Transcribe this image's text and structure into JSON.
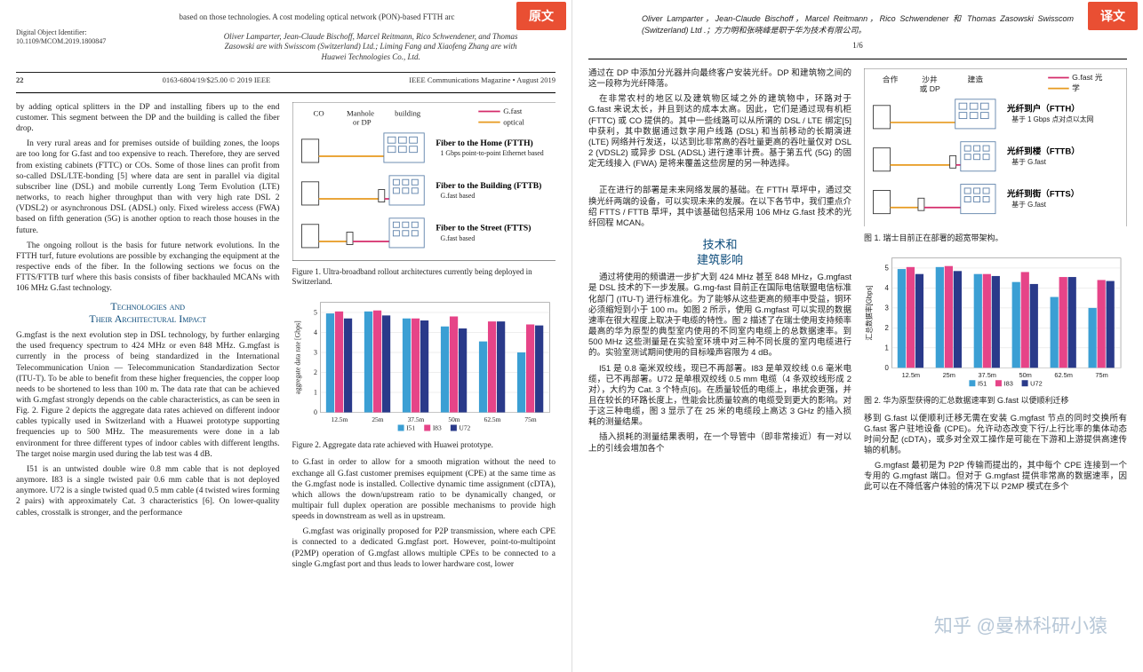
{
  "badges": {
    "left": "原文",
    "right": "译文"
  },
  "watermark": "知乎 @曼林科研小猿",
  "left": {
    "header_line": "based on those technologies. A cost modeling    optical network (PON)-based FTTH arc",
    "doi_label": "Digital Object Identifier:",
    "doi_value": "10.1109/MCOM.2019.1800847",
    "authors": "Oliver Lamparter, Jean-Claude Bischoff, Marcel Reitmann, Rico Schwendener, and Thomas Zasowski are with Swisscom (Switzerland) Ltd.; Liming Fang and Xiaofeng Zhang are with Huawei Technologies Co., Ltd.",
    "footer_pg": "22",
    "footer_center": "0163-6804/19/$25.00 © 2019 IEEE",
    "footer_right": "IEEE Communications Magazine • August 2019",
    "body": {
      "p1": "by adding optical splitters in the DP and installing fibers up to the end customer. This segment between the DP and the building is called the fiber drop.",
      "p2": "In very rural areas and for premises outside of building zones, the loops are too long for G.fast and too expensive to reach. Therefore, they are served from existing cabinets (FTTC) or COs. Some of those lines can profit from so-called DSL/LTE-bonding [5] where data are sent in parallel via digital subscriber line (DSL) and mobile currently Long Term Evolution (LTE) networks, to reach higher throughput than with very high rate DSL 2 (VDSL2) or asynchronous DSL (ADSL) only. Fixed wireless access (FWA) based on fifth generation (5G) is another option to reach those houses in the future.",
      "p3": "The ongoing rollout is the basis for future network evolutions. In the FTTH turf, future evolutions are possible by exchanging the equipment at the respective ends of the fiber. In the following sections we focus on the FTTS/FTTB turf where this basis consists of fiber backhauled MCANs with 106 MHz G.fast technology.",
      "sec_head1": "Technologies and",
      "sec_head2": "Their Architectural Impact",
      "p4": "G.mgfast is the next evolution step in DSL technology, by further enlarging the used frequency spectrum to 424 MHz or even 848 MHz. G.mgfast is currently in the process of being standardized in the International Telecommunication Union — Telecommunication Standardization Sector (ITU-T). To be able to benefit from these higher frequencies, the copper loop needs to be shortened to less than 100 m. The data rate that can be achieved with G.mgfast strongly depends on the cable characteristics, as can be seen in Fig. 2. Figure 2 depicts the aggregate data rates achieved on different indoor cables typically used in Switzerland with a Huawei prototype supporting frequencies up to 500 MHz. The measurements were done in a lab environment for three different types of indoor cables with different lengths. The target noise margin used during the lab test was 4 dB.",
      "p5": "I51 is an untwisted double wire 0.8 mm cable that is not deployed anymore. I83 is a single twisted pair 0.6 mm cable that is not deployed anymore. U72 is a single twisted quad 0.5 mm cable (4 twisted wires forming 2 pairs) with approximately Cat. 3 characteristics [6]. On lower-quality cables, crosstalk is stronger, and the performance",
      "p6": "to G.fast in order to allow for a smooth migration without the need to exchange all G.fast customer premises equipment (CPE) at the same time as the G.mgfast node is installed. Collective dynamic time assignment (cDTA), which allows the down/upstream ratio to be dynamically changed, or multipair full duplex operation are possible mechanisms to provide high speeds in downstream as well as in upstream.",
      "p7": "G.mgfast was originally proposed for P2P transmission, where each CPE is connected to a dedicated G.mgfast port. However, point-to-multipoint (P2MP) operation of G.mgfast allows multiple CPEs to be connected to a single G.mgfast port and thus leads to lower hardware cost, lower"
    },
    "fig1": {
      "caption": "Figure 1. Ultra-broadband rollout architectures currently being deployed in Switzerland.",
      "labels": {
        "co": "CO",
        "manhole": "Manhole or DP",
        "building": "building"
      },
      "legend": [
        "G.fast",
        "optical"
      ],
      "legend_colors": [
        "#d42b6a",
        "#e79a1f"
      ],
      "rows": [
        {
          "title": "Fiber to the Home (FTTH)",
          "sub": "1 Gbps point-to-point Ethernet based"
        },
        {
          "title": "Fiber to the Building (FTTB)",
          "sub": "G.fast based"
        },
        {
          "title": "Fiber to the Street (FTTS)",
          "sub": "G.fast based"
        }
      ],
      "colors": {
        "optical": "#e79a1f",
        "gfast": "#d42b6a",
        "building": "#5b7fa8"
      }
    },
    "fig2": {
      "caption": "Figure 2. Aggregate data rate achieved with Huawei prototype.",
      "type": "bar",
      "ylabel": "aggregate data rate [Gbps]",
      "ylim": [
        0,
        5.5
      ],
      "ytick": [
        0,
        1,
        2,
        3,
        4,
        5
      ],
      "categories": [
        "12.5m",
        "25m",
        "37.5m",
        "50m",
        "62.5m",
        "75m"
      ],
      "series": [
        {
          "name": "I51",
          "color": "#3b9fd4",
          "values": [
            4.95,
            5.05,
            4.7,
            4.3,
            3.55,
            3.0
          ]
        },
        {
          "name": "I83",
          "color": "#e64488",
          "values": [
            5.05,
            5.1,
            4.7,
            4.8,
            4.55,
            4.4
          ]
        },
        {
          "name": "U72",
          "color": "#2a3a8a",
          "values": [
            4.7,
            4.85,
            4.6,
            4.2,
            4.55,
            4.35
          ]
        }
      ],
      "bg": "#ffffff",
      "grid": "#d8d8d8",
      "label_fontsize": 9
    }
  },
  "right": {
    "authors": "Oliver Lamparter，Jean-Claude Bischoff，Marcel Reitmann，Rico Schwendener 和 Thomas Zasowski Swisscom (Switzerland) Ltd .；方力明和张晓峰是职于华为技术有限公司。",
    "page_ind": "1/6",
    "body": {
      "p1": "通过在 DP 中添加分光器并向最终客户安装光纤。DP 和建筑物之间的这一段称为光纤降落。",
      "p2": "在非常农村的地区以及建筑物区域之外的建筑物中，环路对于 G.fast 来说太长，并且到达的成本太高。因此，它们是通过现有机柜 (FTTC) 或 CO 提供的。其中一些线路可以从所谓的 DSL / LTE 绑定[5] 中获利，其中数据通过数字用户线路 (DSL) 和当前移动的长期演进 (LTE) 网络并行发送，以达到比非常高的吞吐量更高的吞吐量仅对 DSL 2 (VDSL2) 或异步 DSL (ADSL) 进行速率计费。基于第五代 (5G) 的固定无线接入 (FWA) 是将来覆盖这些房屋的另一种选择。",
      "p3": "正在进行的部署是未来网络发展的基础。在 FTTH 草坪中，通过交换光纤两端的设备，可以实现未来的发展。在以下各节中，我们重点介绍 FTTS / FTTB 草坪，其中该基础包括采用 106 MHz G.fast 技术的光纤回程 MCAN。",
      "sec_head1": "技术和",
      "sec_head2": "建筑影响",
      "p4": "通过将使用的频谱进一步扩大到 424 MHz 甚至 848 MHz，G.mgfast 是 DSL 技术的下一步发展。G.mg-fast 目前正在国际电信联盟电信标准化部门 (ITU-T) 进行标准化。为了能够从这些更高的频率中受益，铜环必须缩短到小于 100 m。如图 2 所示，使用 G.mgfast 可以实现的数据速率在很大程度上取决于电缆的特性。图 2 描述了在瑞士使用支持频率最高的华为原型的典型室内使用的不同室内电缆上的总数据速率。到 500 MHz 这些测量是在实验室环境中对三种不同长度的室内电缆进行的。实验室测试期间使用的目标噪声容限为 4 dB。",
      "p5": "I51 是 0.8 毫米双绞线，现已不再部署。I83 是单双绞线 0.6 毫米电缆，已不再部署。U72 是单根双绞线 0.5 mm 电缆（4 条双绞线形成 2 对），大约为 Cat. 3 个特点[6]。在质量较低的电缆上，串扰会更强，并且在较长的环路长度上，性能会比质量较高的电缆受到更大的影响。对于这三种电缆，图 3 显示了在 25 米的电缆段上高达 3 GHz 的插入损耗的测量结果。",
      "p6": "插入损耗的测量结果表明，在一个导管中（即非常接近）有一对以上的引线会增加各个",
      "p7": "移到 G.fast 以便顺利迁移无需在安装 G.mgfast 节点的同时交换所有 G.fast 客户驻地设备 (CPE)。允许动态改变下行/上行比率的集体动态时间分配 (cDTA)，或多对全双工操作是可能在下游和上游提供高速传输的机制。",
      "p8": "G.mgfast 最初是为 P2P 传输而提出的，其中每个 CPE 连接到一个专用的 G.mgfast 端口。但对于 G.mgfast 提供非常高的数据速率，因此可以在不降低客户体验的情况下以 P2MP 模式在多个"
    },
    "fig1": {
      "caption": "图 1. 瑞士目前正在部署的超宽带架构。",
      "labels": {
        "co": "合作",
        "manhole": "沙井 或 DP",
        "building": "建造"
      },
      "legend": [
        "G.fast 光",
        "学"
      ],
      "rows": [
        {
          "title": "光纤到户（FTTH）",
          "sub": "基于 1 Gbps 点对点以太网"
        },
        {
          "title": "光纤到楼（FTTB）",
          "sub": "基于 G.fast"
        },
        {
          "title": "光纤到街（FTTS）",
          "sub": "基于 G.fast"
        }
      ]
    },
    "fig2": {
      "caption": "图 2. 华为原型获得的汇总数据速率到 G.fast 以便顺利迁移",
      "ylabel": "汇总数据率[Gbps]"
    }
  }
}
